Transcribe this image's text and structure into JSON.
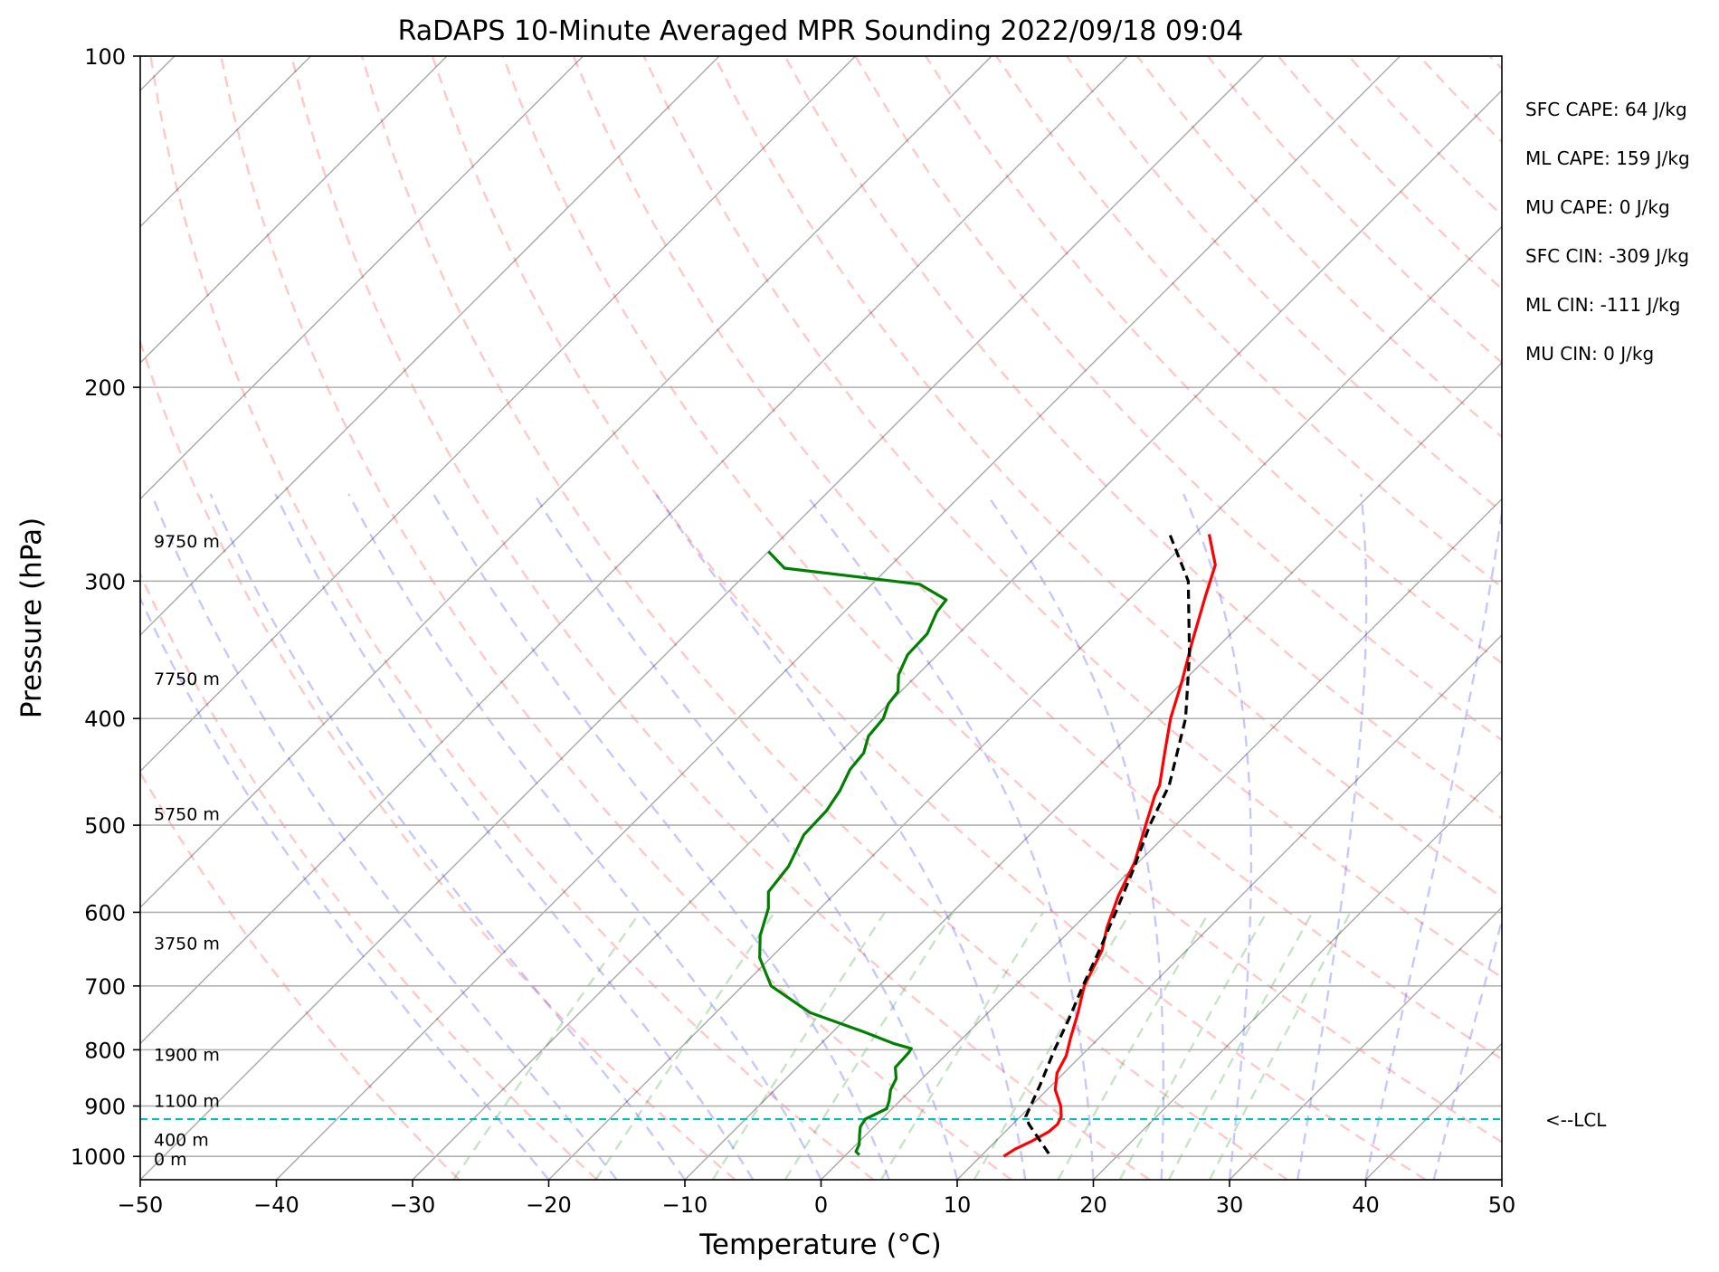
{
  "chart_data": {
    "type": "line",
    "title": "RaDAPS 10-Minute Averaged MPR Sounding 2022/09/18 09:04",
    "xlabel": "Temperature (°C)",
    "ylabel": "Pressure (hPa)",
    "xlim": [
      -50,
      50
    ],
    "ylim": [
      1050,
      100
    ],
    "y_scale": "log",
    "skew": "skew-T",
    "x_ticks": [
      "−50",
      "−40",
      "−30",
      "−20",
      "−10",
      "0",
      "10",
      "20",
      "30",
      "40",
      "50"
    ],
    "y_ticks": [
      "100",
      "200",
      "300",
      "400",
      "500",
      "600",
      "700",
      "800",
      "900",
      "1000"
    ],
    "grid": true,
    "series": [
      {
        "key": "temperature",
        "color": "#ff0000",
        "points": [
          [
            272,
            -18.9
          ],
          [
            290,
            -16.2
          ],
          [
            310,
            -14.6
          ],
          [
            340,
            -12.3
          ],
          [
            370,
            -10.1
          ],
          [
            400,
            -8.2
          ],
          [
            430,
            -6.1
          ],
          [
            460,
            -4.1
          ],
          [
            470,
            -3.7
          ],
          [
            500,
            -2.2
          ],
          [
            540,
            -0.3
          ],
          [
            580,
            1.0
          ],
          [
            620,
            2.5
          ],
          [
            650,
            3.8
          ],
          [
            700,
            5.1
          ],
          [
            740,
            6.6
          ],
          [
            780,
            7.9
          ],
          [
            810,
            8.9
          ],
          [
            840,
            9.5
          ],
          [
            870,
            10.6
          ],
          [
            900,
            12.2
          ],
          [
            920,
            13.0
          ],
          [
            935,
            13.3
          ],
          [
            950,
            13.2
          ],
          [
            970,
            12.6
          ],
          [
            985,
            12.0
          ],
          [
            1000,
            11.7
          ]
        ]
      },
      {
        "key": "dewpoint",
        "color": "#008000",
        "points": [
          [
            282,
            -50
          ],
          [
            292,
            -47.6
          ],
          [
            302,
            -36.5
          ],
          [
            312,
            -33.4
          ],
          [
            320,
            -33.2
          ],
          [
            335,
            -32.3
          ],
          [
            350,
            -32.2
          ],
          [
            365,
            -31.4
          ],
          [
            378,
            -30.2
          ],
          [
            388,
            -30.0
          ],
          [
            400,
            -29.3
          ],
          [
            415,
            -29.1
          ],
          [
            430,
            -28.2
          ],
          [
            445,
            -28.0
          ],
          [
            465,
            -27.2
          ],
          [
            485,
            -26.7
          ],
          [
            510,
            -26.6
          ],
          [
            545,
            -25.4
          ],
          [
            575,
            -25.0
          ],
          [
            595,
            -23.8
          ],
          [
            630,
            -22.4
          ],
          [
            660,
            -20.8
          ],
          [
            700,
            -17.9
          ],
          [
            740,
            -13.1
          ],
          [
            770,
            -7.8
          ],
          [
            790,
            -4.6
          ],
          [
            798,
            -3.0
          ],
          [
            805,
            -2.9
          ],
          [
            830,
            -2.8
          ],
          [
            850,
            -1.9
          ],
          [
            870,
            -1.5
          ],
          [
            890,
            -0.8
          ],
          [
            905,
            -0.4
          ],
          [
            925,
            -1.2
          ],
          [
            940,
            -1.0
          ],
          [
            955,
            -0.5
          ],
          [
            975,
            0.2
          ],
          [
            990,
            0.5
          ],
          [
            997,
            1.0
          ]
        ]
      },
      {
        "key": "parcel",
        "color": "#000000",
        "dashed": true,
        "points": [
          [
            994,
            14.8
          ],
          [
            935,
            11.2
          ],
          [
            920,
            10.4
          ],
          [
            860,
            9.1
          ],
          [
            800,
            7.6
          ],
          [
            750,
            6.4
          ],
          [
            700,
            5.0
          ],
          [
            650,
            3.6
          ],
          [
            600,
            2.0
          ],
          [
            550,
            0.2
          ],
          [
            500,
            -1.9
          ],
          [
            460,
            -3.4
          ],
          [
            400,
            -7.1
          ],
          [
            350,
            -11.5
          ],
          [
            300,
            -17.0
          ],
          [
            272,
            -21.8
          ]
        ]
      }
    ],
    "lcl": {
      "pressure": 925,
      "label": "<--LCL",
      "color": "#00bfbf"
    },
    "height_labels": [
      {
        "pressure": 276,
        "text": "9750 m"
      },
      {
        "pressure": 368,
        "text": "7750 m"
      },
      {
        "pressure": 488,
        "text": "5750 m"
      },
      {
        "pressure": 640,
        "text": "3750 m"
      },
      {
        "pressure": 808,
        "text": "1900 m"
      },
      {
        "pressure": 890,
        "text": "1100 m"
      },
      {
        "pressure": 965,
        "text": "400 m"
      },
      {
        "pressure": 1005,
        "text": "0 m"
      }
    ],
    "annotations": [
      "SFC CAPE: 64 J/kg",
      "ML CAPE: 159 J/kg",
      "MU CAPE: 0 J/kg",
      "SFC CIN: -309 J/kg",
      "ML CIN: -111 J/kg",
      "MU CIN: 0 J/kg"
    ],
    "background_lines": {
      "dry_adiabats": {
        "color": "#ff0000",
        "opacity": 0.22
      },
      "moist_adiabats": {
        "color": "#0000ff",
        "opacity": 0.22
      },
      "mixing_ratio": {
        "color": "#008000",
        "opacity": 0.22
      },
      "isotherms": {
        "color": "#000000",
        "opacity": 0.33
      }
    }
  }
}
